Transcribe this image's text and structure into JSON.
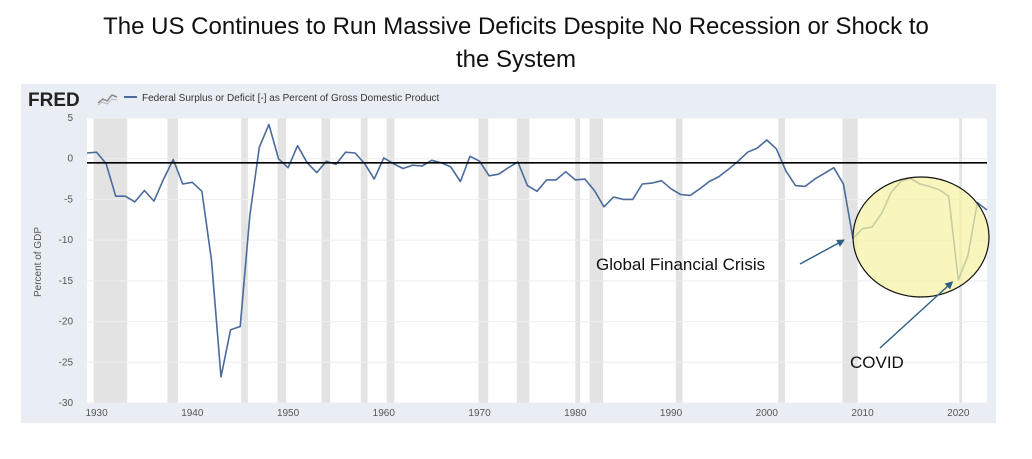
{
  "page": {
    "title_line1": "The US Continues to Run Massive Deficits Despite No Recession or Shock to",
    "title_line2": "the System"
  },
  "fred": {
    "logo_text": "FRED",
    "logo_icon": "line-chart-icon"
  },
  "colors": {
    "series": "#4a6b9c",
    "recession_band": "#e3e3e3",
    "plot_bg": "#ffffff",
    "frame_bg": "#e9eef4",
    "highlight_fill": "#f6f2a4",
    "zero_line": "#000000",
    "arrow": "#2e5f86"
  },
  "chart_data": {
    "type": "line",
    "ylabel": "Percent of GDP",
    "xlim": [
      1929,
      2023
    ],
    "ylim": [
      -30,
      5
    ],
    "yticks": [
      5,
      0,
      -5,
      -10,
      -15,
      -20,
      -25,
      -30
    ],
    "xticks": [
      1930,
      1940,
      1950,
      1960,
      1970,
      1980,
      1990,
      2000,
      2010,
      2020
    ],
    "grid": true,
    "legend": "top-left",
    "series": [
      {
        "name": "Federal Surplus or Deficit [-] as Percent of Gross Domestic Product",
        "x": [
          1929,
          1930,
          1931,
          1932,
          1933,
          1934,
          1935,
          1936,
          1937,
          1938,
          1939,
          1940,
          1941,
          1942,
          1943,
          1944,
          1945,
          1946,
          1947,
          1948,
          1949,
          1950,
          1951,
          1952,
          1953,
          1954,
          1955,
          1956,
          1957,
          1958,
          1959,
          1960,
          1961,
          1962,
          1963,
          1964,
          1965,
          1966,
          1967,
          1968,
          1969,
          1970,
          1971,
          1972,
          1973,
          1974,
          1975,
          1976,
          1977,
          1978,
          1979,
          1980,
          1981,
          1982,
          1983,
          1984,
          1985,
          1986,
          1987,
          1988,
          1989,
          1990,
          1991,
          1992,
          1993,
          1994,
          1995,
          1996,
          1997,
          1998,
          1999,
          2000,
          2001,
          2002,
          2003,
          2004,
          2005,
          2006,
          2007,
          2008,
          2009,
          2010,
          2011,
          2012,
          2013,
          2014,
          2015,
          2016,
          2017,
          2018,
          2019,
          2020,
          2021,
          2022,
          2023
        ],
        "values": [
          0.7,
          0.8,
          -0.6,
          -4.6,
          -4.6,
          -5.3,
          -3.9,
          -5.2,
          -2.5,
          -0.1,
          -3.1,
          -2.9,
          -4.0,
          -12.5,
          -26.8,
          -21.0,
          -20.6,
          -7.0,
          1.4,
          4.2,
          0.0,
          -1.1,
          1.6,
          -0.5,
          -1.7,
          -0.3,
          -0.7,
          0.8,
          0.7,
          -0.6,
          -2.5,
          0.1,
          -0.6,
          -1.2,
          -0.8,
          -0.9,
          -0.2,
          -0.5,
          -1.0,
          -2.8,
          0.3,
          -0.3,
          -2.1,
          -1.9,
          -1.1,
          -0.4,
          -3.3,
          -4.0,
          -2.6,
          -2.6,
          -1.6,
          -2.6,
          -2.5,
          -3.9,
          -5.9,
          -4.7,
          -5.0,
          -5.0,
          -3.1,
          -3.0,
          -2.7,
          -3.7,
          -4.4,
          -4.5,
          -3.7,
          -2.8,
          -2.2,
          -1.3,
          -0.3,
          0.8,
          1.3,
          2.3,
          1.2,
          -1.5,
          -3.3,
          -3.4,
          -2.5,
          -1.8,
          -1.1,
          -3.1,
          -9.8,
          -8.6,
          -8.4,
          -6.7,
          -4.1,
          -2.8,
          -2.4,
          -3.1,
          -3.4,
          -3.8,
          -4.6,
          -14.9,
          -11.9,
          -5.4,
          -6.3
        ]
      }
    ],
    "recessions": [
      [
        1929.7,
        1933.2
      ],
      [
        1937.4,
        1938.5
      ],
      [
        1945.1,
        1945.8
      ],
      [
        1948.9,
        1949.8
      ],
      [
        1953.5,
        1954.4
      ],
      [
        1957.6,
        1958.3
      ],
      [
        1960.3,
        1961.1
      ],
      [
        1969.9,
        1970.9
      ],
      [
        1973.9,
        1975.2
      ],
      [
        1980.0,
        1980.5
      ],
      [
        1981.5,
        1982.9
      ],
      [
        1990.5,
        1991.2
      ],
      [
        2001.2,
        2001.9
      ],
      [
        2007.9,
        2009.5
      ],
      [
        2020.1,
        2020.4
      ]
    ],
    "annotations": [
      {
        "text": "Global Financial Crisis",
        "target_x": 2008.3,
        "target_y": -9.8
      },
      {
        "text": "COVID",
        "target_x": 2018.9,
        "target_y": -15.2
      }
    ]
  }
}
